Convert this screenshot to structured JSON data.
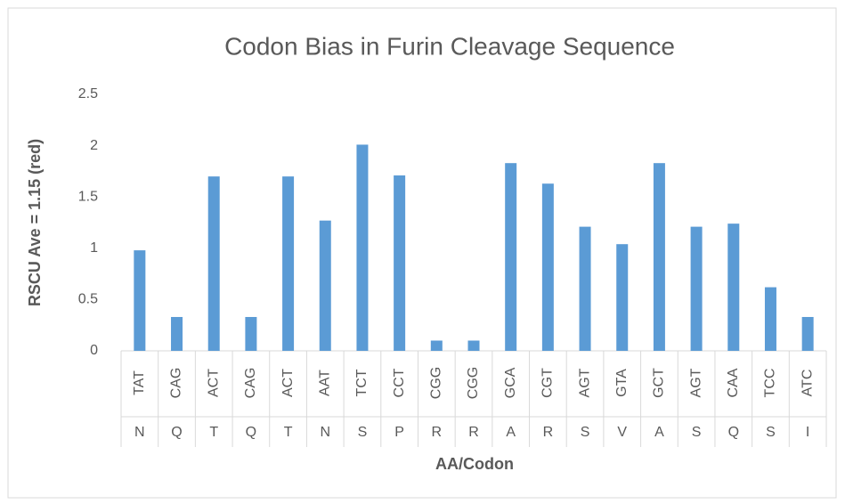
{
  "chart_data": {
    "type": "bar",
    "title": "Codon Bias in Furin Cleavage Sequence",
    "x_label": "AA/Codon",
    "y_label": "RSCU Ave = 1.15 (red)",
    "categories": [
      "TAT",
      "CAG",
      "ACT",
      "CAG",
      "ACT",
      "AAT",
      "TCT",
      "CCT",
      "CGG",
      "CGG",
      "GCA",
      "CGT",
      "AGT",
      "GTA",
      "GCT",
      "AGT",
      "CAA",
      "TCC",
      "ATC"
    ],
    "category_groups": [
      "N",
      "Q",
      "T",
      "Q",
      "T",
      "N",
      "S",
      "P",
      "R",
      "R",
      "A",
      "R",
      "S",
      "V",
      "A",
      "S",
      "Q",
      "S",
      "I"
    ],
    "values": [
      0.98,
      0.33,
      1.7,
      0.33,
      1.7,
      1.27,
      2.01,
      1.71,
      0.1,
      0.1,
      1.83,
      1.63,
      1.21,
      1.04,
      1.83,
      1.21,
      1.24,
      0.62,
      0.33
    ],
    "color": "#5b9bd5",
    "ylim": [
      0,
      2.5
    ],
    "yticks": [
      0,
      0.5,
      1,
      1.5,
      2,
      2.5
    ],
    "grid": false
  }
}
